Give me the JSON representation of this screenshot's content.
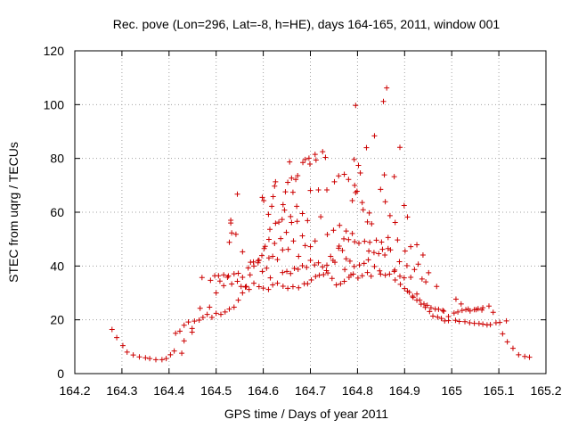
{
  "chart_data": {
    "type": "scatter",
    "title": "Rec. pove (Lon=296, Lat=-8, h=HE), days 164-165, 2011, window 001",
    "xlabel": "GPS time / Days of year 2011",
    "ylabel": "STEC from uqrg / TECUs",
    "xlim": [
      164.2,
      165.2
    ],
    "ylim": [
      0,
      120
    ],
    "x_ticks": [
      164.2,
      164.3,
      164.4,
      164.5,
      164.6,
      164.7,
      164.8,
      164.9,
      165,
      165.1,
      165.2
    ],
    "x_tick_labels": [
      "164.2",
      "164.3",
      "164.4",
      "164.5",
      "164.6",
      "164.7",
      "164.8",
      "164.9",
      "165",
      "165.1",
      "165.2"
    ],
    "y_ticks": [
      0,
      20,
      40,
      60,
      80,
      100,
      120
    ],
    "y_tick_labels": [
      "0",
      "20",
      "40",
      "60",
      "80",
      "100",
      "120"
    ],
    "grid": true,
    "marker": "+",
    "color": "#cc0000",
    "points": [
      [
        164.279,
        16.4
      ],
      [
        164.289,
        13.4
      ],
      [
        164.302,
        10.4
      ],
      [
        164.311,
        8.0
      ],
      [
        164.324,
        6.9
      ],
      [
        164.337,
        6.2
      ],
      [
        164.35,
        5.9
      ],
      [
        164.359,
        5.6
      ],
      [
        164.372,
        5.2
      ],
      [
        164.385,
        5.2
      ],
      [
        164.394,
        5.6
      ],
      [
        164.403,
        7.0
      ],
      [
        164.411,
        8.4
      ],
      [
        164.414,
        15.0
      ],
      [
        164.423,
        15.8
      ],
      [
        164.432,
        18.0
      ],
      [
        164.441,
        19.2
      ],
      [
        164.449,
        16.8
      ],
      [
        164.432,
        12.2
      ],
      [
        164.427,
        7.6
      ],
      [
        164.454,
        19.5
      ],
      [
        164.464,
        19.9
      ],
      [
        164.472,
        20.9
      ],
      [
        164.481,
        22.0
      ],
      [
        164.449,
        15.4
      ],
      [
        164.466,
        24.3
      ],
      [
        164.486,
        24.7
      ],
      [
        164.5,
        30.0
      ],
      [
        164.508,
        34.4
      ],
      [
        164.516,
        32.7
      ],
      [
        164.524,
        35.8
      ],
      [
        164.533,
        33.3
      ],
      [
        164.545,
        34.3
      ],
      [
        164.553,
        32.4
      ],
      [
        164.562,
        32.2
      ],
      [
        164.57,
        31.3
      ],
      [
        164.58,
        33.6
      ],
      [
        164.591,
        32.3
      ],
      [
        164.6,
        31.8
      ],
      [
        164.611,
        31.3
      ],
      [
        164.62,
        33.0
      ],
      [
        164.63,
        33.6
      ],
      [
        164.642,
        32.5
      ],
      [
        164.652,
        31.7
      ],
      [
        164.663,
        32.3
      ],
      [
        164.675,
        31.9
      ],
      [
        164.687,
        33.4
      ],
      [
        164.47,
        35.7
      ],
      [
        164.488,
        34.7
      ],
      [
        164.497,
        36.4
      ],
      [
        164.505,
        36.4
      ],
      [
        164.516,
        36.7
      ],
      [
        164.526,
        36.3
      ],
      [
        164.538,
        37.1
      ],
      [
        164.547,
        37.3
      ],
      [
        164.556,
        35.8
      ],
      [
        164.568,
        39.3
      ],
      [
        164.579,
        41.5
      ],
      [
        164.589,
        42.0
      ],
      [
        164.597,
        43.9
      ],
      [
        164.604,
        47.3
      ],
      [
        164.612,
        43.0
      ],
      [
        164.62,
        43.6
      ],
      [
        164.491,
        20.9
      ],
      [
        164.5,
        22.4
      ],
      [
        164.51,
        22.0
      ],
      [
        164.519,
        22.9
      ],
      [
        164.528,
        24.0
      ],
      [
        164.538,
        24.7
      ],
      [
        164.547,
        27.3
      ],
      [
        164.556,
        30.0
      ],
      [
        164.564,
        32.4
      ],
      [
        164.572,
        36.7
      ],
      [
        164.58,
        40.0
      ],
      [
        164.589,
        41.2
      ],
      [
        164.598,
        38.0
      ],
      [
        164.607,
        39.2
      ],
      [
        164.615,
        35.6
      ],
      [
        164.528,
        48.8
      ],
      [
        164.533,
        52.3
      ],
      [
        164.531,
        56.0
      ],
      [
        164.531,
        57.0
      ],
      [
        164.542,
        51.8
      ],
      [
        164.545,
        66.7
      ],
      [
        164.556,
        45.3
      ],
      [
        164.573,
        41.4
      ],
      [
        164.591,
        42.2
      ],
      [
        164.602,
        46.5
      ],
      [
        164.612,
        49.9
      ],
      [
        164.624,
        48.4
      ],
      [
        164.637,
        50.2
      ],
      [
        164.649,
        52.5
      ],
      [
        164.66,
        56.2
      ],
      [
        164.672,
        56.6
      ],
      [
        164.683,
        51.2
      ],
      [
        164.694,
        56.9
      ],
      [
        164.598,
        65.5
      ],
      [
        164.601,
        64.3
      ],
      [
        164.611,
        59.2
      ],
      [
        164.618,
        62.2
      ],
      [
        164.621,
        65.8
      ],
      [
        164.624,
        69.7
      ],
      [
        164.626,
        71.3
      ],
      [
        164.64,
        57.3
      ],
      [
        164.642,
        62.8
      ],
      [
        164.647,
        67.6
      ],
      [
        164.652,
        71.1
      ],
      [
        164.656,
        78.7
      ],
      [
        164.66,
        72.7
      ],
      [
        164.663,
        67.4
      ],
      [
        164.669,
        72.2
      ],
      [
        164.673,
        73.6
      ],
      [
        164.684,
        78.5
      ],
      [
        164.689,
        79.6
      ],
      [
        164.697,
        80.1
      ],
      [
        164.699,
        77.9
      ],
      [
        164.71,
        81.5
      ],
      [
        164.712,
        79.4
      ],
      [
        164.726,
        82.5
      ],
      [
        164.732,
        80.4
      ],
      [
        164.614,
        53.6
      ],
      [
        164.626,
        55.9
      ],
      [
        164.633,
        56.3
      ],
      [
        164.645,
        60.8
      ],
      [
        164.658,
        58.4
      ],
      [
        164.671,
        62.2
      ],
      [
        164.683,
        59.5
      ],
      [
        164.7,
        68.1
      ],
      [
        164.717,
        68.3
      ],
      [
        164.735,
        68.3
      ],
      [
        164.751,
        71.3
      ],
      [
        164.76,
        73.5
      ],
      [
        164.772,
        74.1
      ],
      [
        164.781,
        72.2
      ],
      [
        164.63,
        42.4
      ],
      [
        164.641,
        46.0
      ],
      [
        164.653,
        46.2
      ],
      [
        164.664,
        49.3
      ],
      [
        164.675,
        43.6
      ],
      [
        164.689,
        47.6
      ],
      [
        164.7,
        47.2
      ],
      [
        164.71,
        49.3
      ],
      [
        164.722,
        58.3
      ],
      [
        164.736,
        51.7
      ],
      [
        164.749,
        53.3
      ],
      [
        164.762,
        55.1
      ],
      [
        164.776,
        53.0
      ],
      [
        164.789,
        52.1
      ],
      [
        164.641,
        37.6
      ],
      [
        164.65,
        38.0
      ],
      [
        164.658,
        37.2
      ],
      [
        164.666,
        39.1
      ],
      [
        164.674,
        38.8
      ],
      [
        164.683,
        40.1
      ],
      [
        164.692,
        39.5
      ],
      [
        164.7,
        42.1
      ],
      [
        164.709,
        40.4
      ],
      [
        164.717,
        41.2
      ],
      [
        164.726,
        39.7
      ],
      [
        164.735,
        40.3
      ],
      [
        164.743,
        43.6
      ],
      [
        164.752,
        41.4
      ],
      [
        164.76,
        46.6
      ],
      [
        164.768,
        45.8
      ],
      [
        164.776,
        42.7
      ],
      [
        164.784,
        41.8
      ],
      [
        164.694,
        33.4
      ],
      [
        164.702,
        34.8
      ],
      [
        164.711,
        36.1
      ],
      [
        164.719,
        36.6
      ],
      [
        164.728,
        36.8
      ],
      [
        164.737,
        37.4
      ],
      [
        164.746,
        35.4
      ],
      [
        164.755,
        33.0
      ],
      [
        164.764,
        33.4
      ],
      [
        164.772,
        34.3
      ],
      [
        164.782,
        35.8
      ],
      [
        164.791,
        37.0
      ],
      [
        164.801,
        35.5
      ],
      [
        164.81,
        36.4
      ],
      [
        164.821,
        37.6
      ],
      [
        164.829,
        36.2
      ],
      [
        164.773,
        38.7
      ],
      [
        164.786,
        36.7
      ],
      [
        164.793,
        39.8
      ],
      [
        164.804,
        40.4
      ],
      [
        164.814,
        41.0
      ],
      [
        164.823,
        42.3
      ],
      [
        164.836,
        39.8
      ],
      [
        164.847,
        38.2
      ],
      [
        164.859,
        36.6
      ],
      [
        164.868,
        37.0
      ],
      [
        164.878,
        38.0
      ],
      [
        164.889,
        41.6
      ],
      [
        164.734,
        38.3
      ],
      [
        164.748,
        42.1
      ],
      [
        164.761,
        47.4
      ],
      [
        164.771,
        50.1
      ],
      [
        164.781,
        49.8
      ],
      [
        164.794,
        49.0
      ],
      [
        164.803,
        48.5
      ],
      [
        164.815,
        49.2
      ],
      [
        164.826,
        48.8
      ],
      [
        164.84,
        49.6
      ],
      [
        164.851,
        48.9
      ],
      [
        164.865,
        50.6
      ],
      [
        164.789,
        64.3
      ],
      [
        164.796,
        67.3
      ],
      [
        164.799,
        67.8
      ],
      [
        164.794,
        70.0
      ],
      [
        164.806,
        74.6
      ],
      [
        164.793,
        79.6
      ],
      [
        164.796,
        99.7
      ],
      [
        164.802,
        77.4
      ],
      [
        164.81,
        63.6
      ],
      [
        164.812,
        60.9
      ],
      [
        164.819,
        84.0
      ],
      [
        164.821,
        56.4
      ],
      [
        164.825,
        59.7
      ],
      [
        164.83,
        55.7
      ],
      [
        164.836,
        88.4
      ],
      [
        164.849,
        68.5
      ],
      [
        164.855,
        101.2
      ],
      [
        164.857,
        73.9
      ],
      [
        164.859,
        63.9
      ],
      [
        164.862,
        106.2
      ],
      [
        164.869,
        58.7
      ],
      [
        164.878,
        73.2
      ],
      [
        164.88,
        56.2
      ],
      [
        164.824,
        45.6
      ],
      [
        164.835,
        45.0
      ],
      [
        164.845,
        44.6
      ],
      [
        164.858,
        44.1
      ],
      [
        164.87,
        46.0
      ],
      [
        164.885,
        49.7
      ],
      [
        164.89,
        84.1
      ],
      [
        164.899,
        62.5
      ],
      [
        164.906,
        58.2
      ],
      [
        164.849,
        37.0
      ],
      [
        164.853,
        46.2
      ],
      [
        164.865,
        46.5
      ],
      [
        164.879,
        38.5
      ],
      [
        164.88,
        34.8
      ],
      [
        164.89,
        36.2
      ],
      [
        164.899,
        35.6
      ],
      [
        164.905,
        40.1
      ],
      [
        164.913,
        35.8
      ],
      [
        164.921,
        38.7
      ],
      [
        164.929,
        40.7
      ],
      [
        164.937,
        35.2
      ],
      [
        164.945,
        34.1
      ],
      [
        164.891,
        33.2
      ],
      [
        164.9,
        31.6
      ],
      [
        164.906,
        30.7
      ],
      [
        164.917,
        28.8
      ],
      [
        164.926,
        29.6
      ],
      [
        164.932,
        27.3
      ],
      [
        164.941,
        25.9
      ],
      [
        164.948,
        25.4
      ],
      [
        164.956,
        24.5
      ],
      [
        164.965,
        24.0
      ],
      [
        164.972,
        23.9
      ],
      [
        164.981,
        23.5
      ],
      [
        164.91,
        30.2
      ],
      [
        164.918,
        28.3
      ],
      [
        164.926,
        27.3
      ],
      [
        164.935,
        25.8
      ],
      [
        164.944,
        24.6
      ],
      [
        164.953,
        23.1
      ],
      [
        164.96,
        21.4
      ],
      [
        164.97,
        21.0
      ],
      [
        164.978,
        20.5
      ],
      [
        164.985,
        19.6
      ],
      [
        164.993,
        19.7
      ],
      [
        164.901,
        45.6
      ],
      [
        164.913,
        47.2
      ],
      [
        164.926,
        47.9
      ],
      [
        164.939,
        44.1
      ],
      [
        164.951,
        37.5
      ],
      [
        164.968,
        32.4
      ],
      [
        164.983,
        23.2
      ],
      [
        164.993,
        21.2
      ],
      [
        165.005,
        22.5
      ],
      [
        165.013,
        22.9
      ],
      [
        165.022,
        23.5
      ],
      [
        165.03,
        23.8
      ],
      [
        165.039,
        23.3
      ],
      [
        165.048,
        23.8
      ],
      [
        165.056,
        24.1
      ],
      [
        165.066,
        24.5
      ],
      [
        165.079,
        25.1
      ],
      [
        165.088,
        22.8
      ],
      [
        165.008,
        19.8
      ],
      [
        165.016,
        19.4
      ],
      [
        165.028,
        19.3
      ],
      [
        165.038,
        18.9
      ],
      [
        165.048,
        18.7
      ],
      [
        165.058,
        18.6
      ],
      [
        165.066,
        18.4
      ],
      [
        165.075,
        18.1
      ],
      [
        165.082,
        18.2
      ],
      [
        165.094,
        18.9
      ],
      [
        165.102,
        19.0
      ],
      [
        165.116,
        19.6
      ],
      [
        165.009,
        27.7
      ],
      [
        165.02,
        25.9
      ],
      [
        165.035,
        24.0
      ],
      [
        165.052,
        23.8
      ],
      [
        165.064,
        23.6
      ],
      [
        165.108,
        14.8
      ],
      [
        165.118,
        11.8
      ],
      [
        165.13,
        9.4
      ],
      [
        165.142,
        7.0
      ],
      [
        165.155,
        6.4
      ],
      [
        165.165,
        6.1
      ]
    ]
  }
}
